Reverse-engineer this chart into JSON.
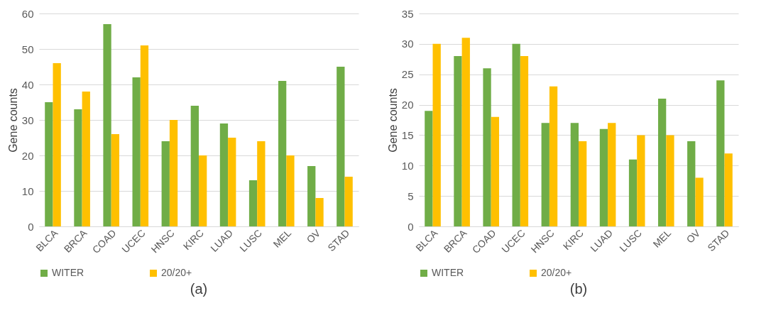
{
  "chart_data": [
    {
      "type": "bar",
      "ylabel": "Gene counts",
      "categories": [
        "BLCA",
        "BRCA",
        "COAD",
        "UCEC",
        "HNSC",
        "KIRC",
        "LUAD",
        "LUSC",
        "MEL",
        "OV",
        "STAD"
      ],
      "series": [
        {
          "name": "WITER",
          "color": "#70ad47",
          "values": [
            35,
            33,
            57,
            42,
            24,
            34,
            29,
            13,
            41,
            17,
            45
          ]
        },
        {
          "name": "20/20+",
          "color": "#ffc000",
          "values": [
            46,
            38,
            26,
            51,
            30,
            20,
            25,
            24,
            20,
            8,
            14
          ]
        }
      ],
      "ylim": [
        0,
        60
      ],
      "yticks": [
        0,
        10,
        20,
        30,
        40,
        50,
        60
      ],
      "grid": "y",
      "legend": "bottom",
      "annotations": [
        "(a)"
      ]
    },
    {
      "type": "bar",
      "ylabel": "Gene counts",
      "categories": [
        "BLCA",
        "BRCA",
        "COAD",
        "UCEC",
        "HNSC",
        "KIRC",
        "LUAD",
        "LUSC",
        "MEL",
        "OV",
        "STAD"
      ],
      "series": [
        {
          "name": "WITER",
          "color": "#70ad47",
          "values": [
            19,
            28,
            26,
            30,
            17,
            17,
            16,
            11,
            21,
            14,
            24
          ]
        },
        {
          "name": "20/20+",
          "color": "#ffc000",
          "values": [
            30,
            31,
            18,
            28,
            23,
            14,
            17,
            15,
            15,
            8,
            12
          ]
        }
      ],
      "ylim": [
        0,
        35
      ],
      "yticks": [
        0,
        5,
        10,
        15,
        20,
        25,
        30,
        35
      ],
      "grid": "y",
      "legend": "bottom",
      "annotations": [
        "(b)"
      ]
    }
  ]
}
